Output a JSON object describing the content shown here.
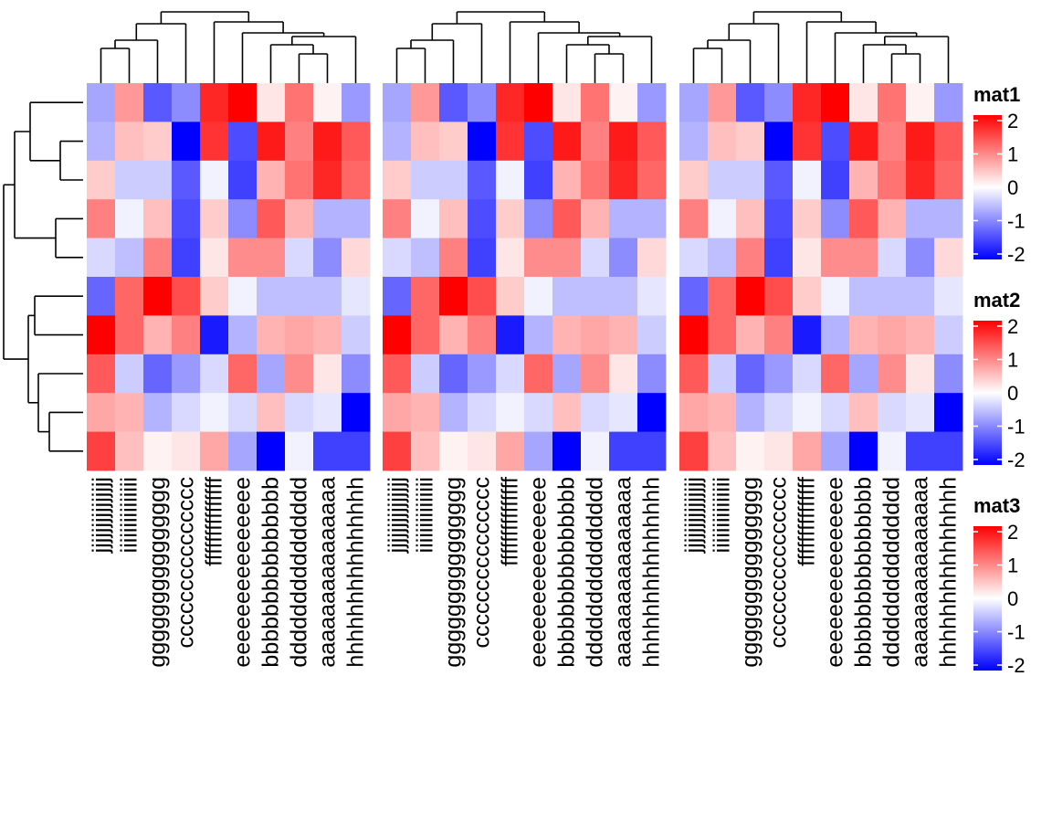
{
  "chart_data": {
    "type": "heatmap",
    "columns": [
      "jjjjjjjjjjjjjjj",
      "iiiiiiiiiiiiiii",
      "ggggggggggggggg",
      "ccccccccccccccc",
      "fffffffffffffff",
      "eeeeeeeeeeeeeee",
      "bbbbbbbbbbbbbbb",
      "ddddddddddddddd",
      "aaaaaaaaaaaaaaa",
      "hhhhhhhhhhhhhhh"
    ],
    "matrices": [
      "mat1",
      "mat2",
      "mat3"
    ],
    "values": [
      [
        -0.7,
        0.8,
        -1.3,
        -0.9,
        1.7,
        2.3,
        0.2,
        1.1,
        0.1,
        -0.8
      ],
      [
        -0.6,
        0.5,
        0.4,
        -2.0,
        1.6,
        -1.4,
        1.8,
        1.0,
        1.8,
        1.3
      ],
      [
        0.4,
        -0.4,
        -0.4,
        -1.3,
        -0.1,
        -1.5,
        0.6,
        1.1,
        1.7,
        1.2
      ],
      [
        1.0,
        -0.1,
        0.5,
        -1.4,
        0.4,
        -0.9,
        1.3,
        0.6,
        -0.6,
        -0.6
      ],
      [
        -0.3,
        -0.5,
        1.0,
        -1.5,
        0.2,
        0.9,
        0.9,
        -0.3,
        -0.9,
        0.3
      ],
      [
        -1.2,
        1.2,
        2.1,
        1.4,
        0.4,
        -0.1,
        -0.5,
        -0.5,
        -0.5,
        -0.2
      ],
      [
        2.2,
        1.2,
        0.6,
        1.0,
        -1.8,
        -0.6,
        0.6,
        0.7,
        0.6,
        -0.4
      ],
      [
        1.3,
        -0.4,
        -1.2,
        -0.8,
        -0.3,
        1.2,
        -0.7,
        0.9,
        0.2,
        -0.9
      ],
      [
        0.7,
        0.6,
        -0.6,
        -0.3,
        -0.1,
        -0.3,
        0.5,
        -0.3,
        -0.2,
        -2.3
      ],
      [
        1.5,
        0.5,
        0.1,
        0.2,
        0.7,
        -0.7,
        -2.2,
        -0.1,
        -1.5,
        -1.5
      ]
    ],
    "legends": [
      {
        "title": "mat1",
        "ticks": [
          "2",
          "1",
          "0",
          "-1",
          "-2"
        ]
      },
      {
        "title": "mat2",
        "ticks": [
          "2",
          "1",
          "0",
          "-1",
          "-2"
        ]
      },
      {
        "title": "mat3",
        "ticks": [
          "2",
          "1",
          "0",
          "-1",
          "-2"
        ]
      }
    ],
    "color_scale": {
      "min": -2,
      "mid": 0,
      "max": 2,
      "low": "#0000ff",
      "midColor": "#ffffff",
      "high": "#ff0000"
    },
    "grid": false,
    "legend_position": "right"
  }
}
